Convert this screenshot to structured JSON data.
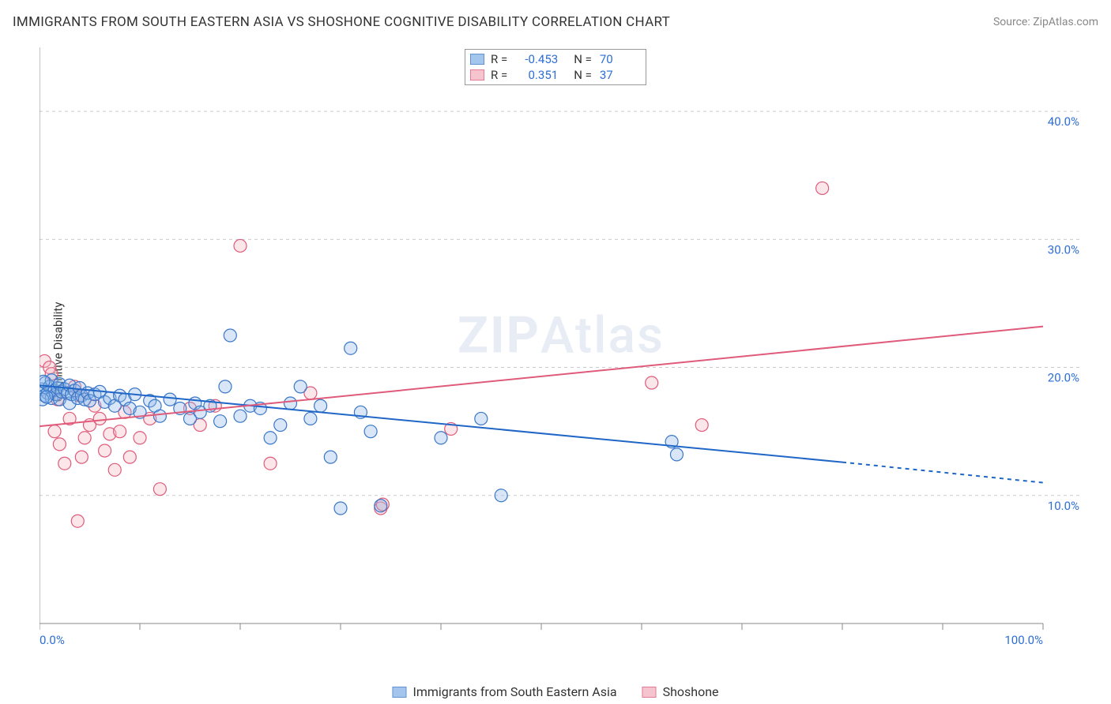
{
  "title": "IMMIGRANTS FROM SOUTH EASTERN ASIA VS SHOSHONE COGNITIVE DISABILITY CORRELATION CHART",
  "source": "Source: ZipAtlas.com",
  "ylabel": "Cognitive Disability",
  "watermark_a": "ZIP",
  "watermark_b": "Atlas",
  "chart": {
    "type": "scatter",
    "background_color": "#ffffff",
    "grid_color": "#cccccc",
    "axis_color": "#888888",
    "tick_label_color": "#2d6ed6",
    "font_size_title": 17,
    "font_size_axis": 15,
    "xlim": [
      0,
      100
    ],
    "ylim": [
      0,
      45
    ],
    "x_ticks": [
      0,
      10,
      20,
      30,
      40,
      50,
      60,
      70,
      80,
      90,
      100
    ],
    "x_tick_labels": {
      "0": "0.0%",
      "100": "100.0%"
    },
    "y_gridlines": [
      10,
      20,
      30,
      40
    ],
    "y_tick_labels": {
      "10": "10.0%",
      "20": "20.0%",
      "30": "30.0%",
      "40": "40.0%"
    },
    "marker_radius": 8,
    "marker_fill_opacity": 0.35,
    "trend_line_width": 2,
    "series": [
      {
        "key": "blue",
        "label": "Immigrants from South Eastern Asia",
        "fill": "#8fb8e8",
        "stroke": "#3a77c9",
        "line_color": "#1f66c7",
        "R": "-0.453",
        "N": "70",
        "trend": {
          "x1": 0,
          "y1": 18.6,
          "x2": 80,
          "y2": 12.6,
          "dash_x2": 100,
          "dash_y2": 11.0
        },
        "points": [
          [
            0.2,
            18.3
          ],
          [
            0.5,
            17.8
          ],
          [
            0.6,
            18.8
          ],
          [
            0.8,
            18.0
          ],
          [
            1.0,
            18.5
          ],
          [
            1.2,
            19.0
          ],
          [
            1.2,
            17.6
          ],
          [
            1.5,
            18.2
          ],
          [
            1.6,
            17.9
          ],
          [
            1.8,
            18.4
          ],
          [
            2.0,
            18.7
          ],
          [
            2.0,
            17.5
          ],
          [
            2.2,
            18.1
          ],
          [
            2.5,
            18.3
          ],
          [
            2.8,
            18.0
          ],
          [
            3.0,
            18.6
          ],
          [
            3.0,
            17.2
          ],
          [
            3.2,
            17.9
          ],
          [
            3.5,
            18.2
          ],
          [
            3.8,
            17.6
          ],
          [
            4.0,
            18.4
          ],
          [
            4.2,
            17.8
          ],
          [
            4.5,
            17.5
          ],
          [
            4.8,
            18.0
          ],
          [
            5.0,
            17.4
          ],
          [
            5.5,
            17.9
          ],
          [
            6.0,
            18.1
          ],
          [
            6.5,
            17.3
          ],
          [
            7.0,
            17.6
          ],
          [
            7.5,
            17.0
          ],
          [
            8.0,
            17.8
          ],
          [
            8.5,
            17.5
          ],
          [
            9.0,
            16.8
          ],
          [
            9.5,
            17.9
          ],
          [
            10.0,
            16.5
          ],
          [
            11.0,
            17.4
          ],
          [
            11.5,
            17.0
          ],
          [
            12.0,
            16.2
          ],
          [
            13.0,
            17.5
          ],
          [
            14.0,
            16.8
          ],
          [
            15.0,
            16.0
          ],
          [
            15.5,
            17.2
          ],
          [
            16.0,
            16.5
          ],
          [
            17.0,
            17.0
          ],
          [
            18.0,
            15.8
          ],
          [
            18.5,
            18.5
          ],
          [
            19.0,
            22.5
          ],
          [
            20.0,
            16.2
          ],
          [
            21.0,
            17.0
          ],
          [
            22.0,
            16.8
          ],
          [
            23.0,
            14.5
          ],
          [
            24.0,
            15.5
          ],
          [
            25.0,
            17.2
          ],
          [
            26.0,
            18.5
          ],
          [
            27.0,
            16.0
          ],
          [
            28.0,
            17.0
          ],
          [
            29.0,
            13.0
          ],
          [
            30.0,
            9.0
          ],
          [
            31.0,
            21.5
          ],
          [
            32.0,
            16.5
          ],
          [
            33.0,
            15.0
          ],
          [
            34.0,
            9.2
          ],
          [
            40.0,
            14.5
          ],
          [
            44.0,
            16.0
          ],
          [
            46.0,
            10.0
          ],
          [
            63.0,
            14.2
          ],
          [
            63.5,
            13.2
          ],
          [
            0.3,
            17.5
          ],
          [
            0.4,
            18.9
          ],
          [
            0.7,
            17.7
          ]
        ]
      },
      {
        "key": "pink",
        "label": "Shoshone",
        "fill": "#f4b6c2",
        "stroke": "#e05a7a",
        "line_color": "#e05a7a",
        "R": "0.351",
        "N": "37",
        "trend": {
          "x1": 0,
          "y1": 15.4,
          "x2": 100,
          "y2": 23.2
        },
        "points": [
          [
            0.5,
            20.5
          ],
          [
            1.0,
            20.0
          ],
          [
            1.2,
            19.5
          ],
          [
            1.5,
            15.0
          ],
          [
            1.8,
            17.5
          ],
          [
            2.0,
            14.0
          ],
          [
            2.5,
            12.5
          ],
          [
            3.0,
            16.0
          ],
          [
            3.5,
            18.5
          ],
          [
            3.8,
            8.0
          ],
          [
            4.0,
            17.8
          ],
          [
            4.2,
            13.0
          ],
          [
            4.5,
            14.5
          ],
          [
            5.0,
            15.5
          ],
          [
            5.5,
            17.0
          ],
          [
            6.0,
            16.0
          ],
          [
            6.5,
            13.5
          ],
          [
            7.0,
            14.8
          ],
          [
            7.5,
            12.0
          ],
          [
            8.0,
            15.0
          ],
          [
            8.5,
            16.5
          ],
          [
            9.0,
            13.0
          ],
          [
            10.0,
            14.5
          ],
          [
            11.0,
            16.0
          ],
          [
            12.0,
            10.5
          ],
          [
            15.0,
            16.8
          ],
          [
            16.0,
            15.5
          ],
          [
            17.5,
            17.0
          ],
          [
            20.0,
            29.5
          ],
          [
            23.0,
            12.5
          ],
          [
            27.0,
            18.0
          ],
          [
            34.0,
            9.0
          ],
          [
            34.2,
            9.3
          ],
          [
            41.0,
            15.2
          ],
          [
            61.0,
            18.8
          ],
          [
            66.0,
            15.5
          ],
          [
            78.0,
            34.0
          ]
        ]
      }
    ]
  },
  "legend_box": {
    "rows": [
      {
        "series": "blue",
        "r_label": "R =",
        "n_label": "N ="
      },
      {
        "series": "pink",
        "r_label": "R =",
        "n_label": "N ="
      }
    ]
  }
}
